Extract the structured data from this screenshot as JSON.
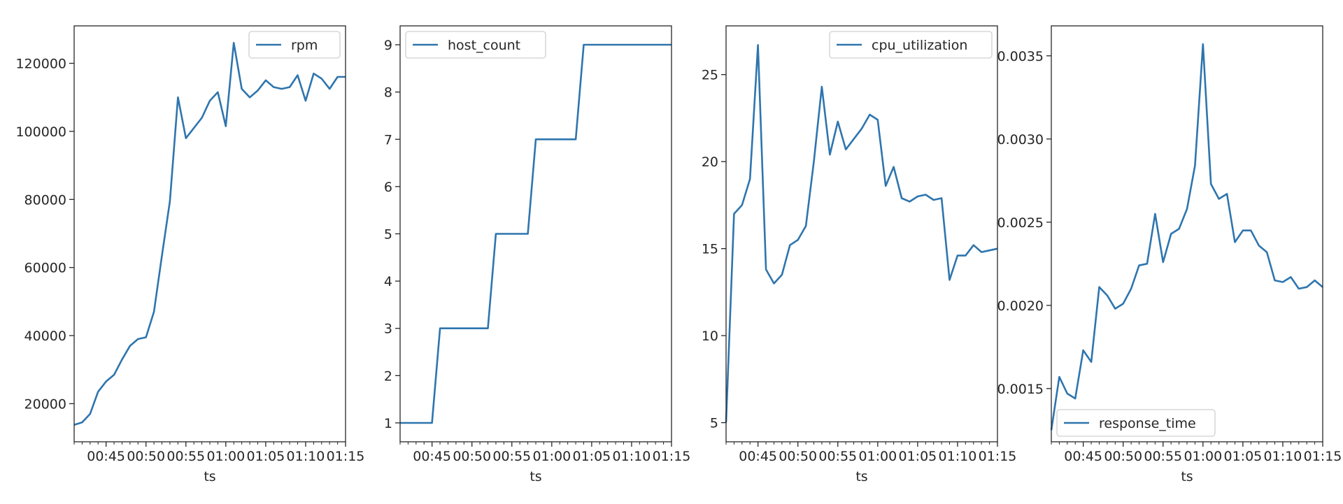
{
  "figure": {
    "line_color": "#2e75ae",
    "axes_color": "#262626"
  },
  "chart_data": [
    {
      "type": "line",
      "series": [
        {
          "name": "rpm",
          "x": [
            41,
            42,
            43,
            44,
            45,
            46,
            47,
            48,
            49,
            50,
            51,
            52,
            53,
            54,
            55,
            56,
            57,
            58,
            59,
            60,
            61,
            62,
            63,
            64,
            65,
            66,
            67,
            68,
            69,
            70,
            71,
            72,
            73,
            74,
            75
          ],
          "values": [
            13800,
            14500,
            17000,
            23500,
            26500,
            28500,
            33000,
            37000,
            39000,
            39500,
            47000,
            63500,
            79500,
            110000,
            98000,
            101000,
            104000,
            109000,
            111500,
            101500,
            126000,
            112500,
            110000,
            112000,
            115000,
            113000,
            112500,
            113000,
            116500,
            109000,
            117000,
            115500,
            112500,
            116000,
            116000
          ]
        }
      ],
      "xlabel": "ts",
      "xlim": [
        41,
        75
      ],
      "xticks": [
        45,
        50,
        55,
        60,
        65,
        70,
        75
      ],
      "xtick_labels": [
        "00:45",
        "00:50",
        "00:55",
        "01:00",
        "01:05",
        "01:10",
        "01:15"
      ],
      "ylim": [
        8800,
        131000
      ],
      "yticks": [
        20000,
        40000,
        60000,
        80000,
        100000,
        120000
      ],
      "ytick_labels": [
        "20000",
        "40000",
        "60000",
        "80000",
        "100000",
        "120000"
      ],
      "legend": {
        "label": "rpm",
        "position": "upper right"
      }
    },
    {
      "type": "line",
      "series": [
        {
          "name": "host_count",
          "x": [
            41,
            42,
            43,
            44,
            45,
            46,
            47,
            48,
            49,
            50,
            51,
            52,
            53,
            54,
            55,
            56,
            57,
            58,
            59,
            60,
            61,
            62,
            63,
            64,
            65,
            66,
            67,
            68,
            69,
            70,
            71,
            72,
            73,
            74,
            75
          ],
          "values": [
            1,
            1,
            1,
            1,
            1,
            3,
            3,
            3,
            3,
            3,
            3,
            3,
            5,
            5,
            5,
            5,
            5,
            7,
            7,
            7,
            7,
            7,
            7,
            9,
            9,
            9,
            9,
            9,
            9,
            9,
            9,
            9,
            9,
            9,
            9
          ]
        }
      ],
      "xlabel": "ts",
      "xlim": [
        41,
        75
      ],
      "xticks": [
        45,
        50,
        55,
        60,
        65,
        70,
        75
      ],
      "xtick_labels": [
        "00:45",
        "00:50",
        "00:55",
        "01:00",
        "01:05",
        "01:10",
        "01:15"
      ],
      "ylim": [
        0.6,
        9.4
      ],
      "yticks": [
        1,
        2,
        3,
        4,
        5,
        6,
        7,
        8,
        9
      ],
      "ytick_labels": [
        "1",
        "2",
        "3",
        "4",
        "5",
        "6",
        "7",
        "8",
        "9"
      ],
      "legend": {
        "label": "host_count",
        "position": "upper left"
      }
    },
    {
      "type": "line",
      "series": [
        {
          "name": "cpu_utilization",
          "x": [
            41,
            42,
            43,
            44,
            45,
            46,
            47,
            48,
            49,
            50,
            51,
            52,
            53,
            54,
            55,
            56,
            57,
            58,
            59,
            60,
            61,
            62,
            63,
            64,
            65,
            66,
            67,
            68,
            69,
            70,
            71,
            72,
            73,
            74,
            75
          ],
          "values": [
            5.0,
            17.0,
            17.5,
            19.0,
            26.7,
            13.8,
            13.0,
            13.5,
            15.2,
            15.5,
            16.3,
            20.0,
            24.3,
            20.4,
            22.3,
            20.7,
            21.3,
            21.9,
            22.7,
            22.4,
            18.6,
            19.7,
            17.9,
            17.7,
            18.0,
            18.1,
            17.8,
            17.9,
            13.2,
            14.6,
            14.6,
            15.2,
            14.8,
            14.9,
            15.0
          ]
        }
      ],
      "xlabel": "ts",
      "xlim": [
        41,
        75
      ],
      "xticks": [
        45,
        50,
        55,
        60,
        65,
        70,
        75
      ],
      "xtick_labels": [
        "00:45",
        "00:50",
        "00:55",
        "01:00",
        "01:05",
        "01:10",
        "01:15"
      ],
      "ylim": [
        3.9,
        27.8
      ],
      "yticks": [
        5,
        10,
        15,
        20,
        25
      ],
      "ytick_labels": [
        "5",
        "10",
        "15",
        "20",
        "25"
      ],
      "legend": {
        "label": "cpu_utilization",
        "position": "upper right"
      }
    },
    {
      "type": "line",
      "series": [
        {
          "name": "response_time",
          "x": [
            41,
            42,
            43,
            44,
            45,
            46,
            47,
            48,
            49,
            50,
            51,
            52,
            53,
            54,
            55,
            56,
            57,
            58,
            59,
            60,
            61,
            62,
            63,
            64,
            65,
            66,
            67,
            68,
            69,
            70,
            71,
            72,
            73,
            74,
            75
          ],
          "values": [
            0.00125,
            0.00157,
            0.00147,
            0.00144,
            0.00173,
            0.00166,
            0.00211,
            0.00206,
            0.00198,
            0.00201,
            0.0021,
            0.00224,
            0.00225,
            0.00255,
            0.00226,
            0.00243,
            0.00246,
            0.00258,
            0.00284,
            0.00357,
            0.00273,
            0.00264,
            0.00267,
            0.00238,
            0.00245,
            0.00245,
            0.00236,
            0.00232,
            0.00215,
            0.00214,
            0.00217,
            0.0021,
            0.00211,
            0.00215,
            0.00211
          ]
        }
      ],
      "xlabel": "ts",
      "xlim": [
        41,
        75
      ],
      "xticks": [
        45,
        50,
        55,
        60,
        65,
        70,
        75
      ],
      "xtick_labels": [
        "00:45",
        "00:50",
        "00:55",
        "01:00",
        "01:05",
        "01:10",
        "01:15"
      ],
      "ylim": [
        0.00118,
        0.00368
      ],
      "yticks": [
        0.0015,
        0.002,
        0.0025,
        0.003,
        0.0035
      ],
      "ytick_labels": [
        "0.0015",
        "0.0020",
        "0.0025",
        "0.0030",
        "0.0035"
      ],
      "legend": {
        "label": "response_time",
        "position": "lower left"
      }
    }
  ]
}
